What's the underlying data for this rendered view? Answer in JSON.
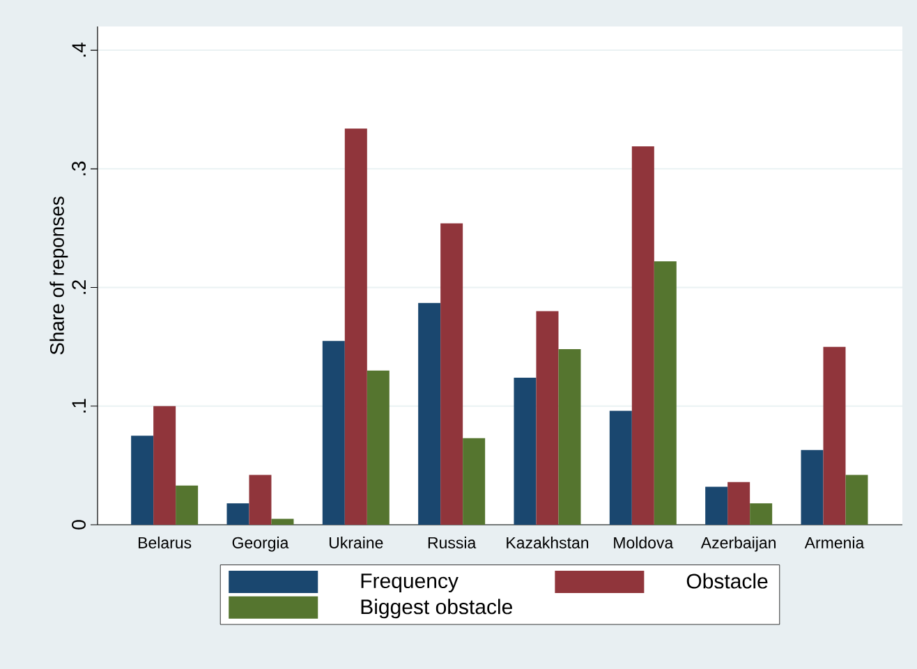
{
  "chart_data": {
    "type": "bar",
    "ylabel": "Share of reponses",
    "categories": [
      "Belarus",
      "Georgia",
      "Ukraine",
      "Russia",
      "Kazakhstan",
      "Moldova",
      "Azerbaijan",
      "Armenia"
    ],
    "series": [
      {
        "name": "Frequency",
        "color": "#1a476f",
        "values": [
          0.075,
          0.018,
          0.155,
          0.187,
          0.124,
          0.096,
          0.032,
          0.063
        ]
      },
      {
        "name": "Obstacle",
        "color": "#90353b",
        "values": [
          0.1,
          0.042,
          0.334,
          0.254,
          0.18,
          0.319,
          0.036,
          0.15
        ]
      },
      {
        "name": "Biggest obstacle",
        "color": "#55752f",
        "values": [
          0.033,
          0.005,
          0.13,
          0.073,
          0.148,
          0.222,
          0.018,
          0.042
        ]
      }
    ],
    "ylim": [
      0,
      0.42
    ],
    "yticks": [
      0,
      {
        "value": 0.1,
        "label": ".1"
      },
      {
        "value": 0.2,
        "label": ".2"
      },
      {
        "value": 0.3,
        "label": ".3"
      },
      {
        "value": 0.4,
        "label": ".4"
      }
    ],
    "grid": "y",
    "legend": "bottom"
  }
}
